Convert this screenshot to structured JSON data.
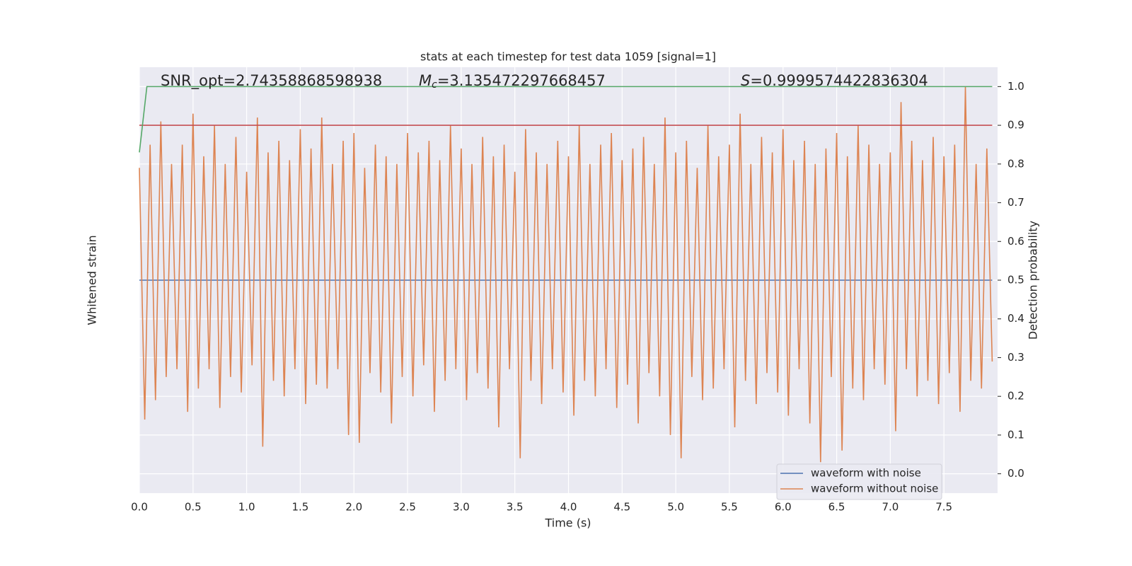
{
  "chart_data": {
    "type": "line",
    "title": "stats at each timestep for test data 1059 [signal=1]",
    "x_label": "Time (s)",
    "y_label": "Whitened strain",
    "y2_label": "Detection probability",
    "annotations": {
      "snr": "SNR_opt=2.74358868598938",
      "mc": {
        "symbol": "M",
        "subscript": "c",
        "text": "=3.135472297668457"
      },
      "s": {
        "symbol": "S",
        "text": "=0.9999574422836304"
      }
    },
    "xlim": [
      0,
      8.0
    ],
    "xticks": [
      {
        "value": 0,
        "label": "0.0"
      },
      0.5,
      {
        "value": 1,
        "label": "1.0"
      },
      1.5,
      {
        "value": 2,
        "label": "2.0"
      },
      2.5,
      {
        "value": 3,
        "label": "3.0"
      },
      3.5,
      {
        "value": 4,
        "label": "4.0"
      },
      4.5,
      {
        "value": 5,
        "label": "5.0"
      },
      5.5,
      {
        "value": 6,
        "label": "6.0"
      },
      6.5,
      {
        "value": 7,
        "label": "7.0"
      },
      7.5
    ],
    "y2lim": [
      -0.05,
      1.05
    ],
    "y2ticks": [
      {
        "value": 0,
        "label": "0.0"
      },
      0.1,
      0.2,
      0.3,
      0.4,
      0.5,
      0.6,
      0.7,
      0.8,
      0.9,
      {
        "value": 1,
        "label": "1.0"
      }
    ],
    "grid": true,
    "legend_position": "lower right",
    "series": [
      {
        "name": "waveform with noise",
        "color": "#4c72b0",
        "axis": "y2",
        "x": [
          0,
          4,
          7.95
        ],
        "values": [
          0.5,
          0.5,
          0.5
        ]
      },
      {
        "name": "waveform without noise",
        "color": "#dd8452",
        "axis": "y2",
        "x": [
          0,
          0.05,
          0.1,
          0.15,
          0.2,
          0.25,
          0.3,
          0.35,
          0.4,
          0.45,
          0.5,
          0.55,
          0.6,
          0.65,
          0.7,
          0.75,
          0.8,
          0.85,
          0.9,
          0.95,
          1,
          1.05,
          1.1,
          1.15,
          1.2,
          1.25,
          1.3,
          1.35,
          1.4,
          1.45,
          1.5,
          1.55,
          1.6,
          1.65,
          1.7,
          1.75,
          1.8,
          1.85,
          1.9,
          1.95,
          2,
          2.05,
          2.1,
          2.15,
          2.2,
          2.25,
          2.3,
          2.35,
          2.4,
          2.45,
          2.5,
          2.55,
          2.6,
          2.65,
          2.7,
          2.75,
          2.8,
          2.85,
          2.9,
          2.95,
          3,
          3.05,
          3.1,
          3.15,
          3.2,
          3.25,
          3.3,
          3.35,
          3.4,
          3.45,
          3.5,
          3.55,
          3.6,
          3.65,
          3.7,
          3.75,
          3.8,
          3.85,
          3.9,
          3.95,
          4,
          4.05,
          4.1,
          4.15,
          4.2,
          4.25,
          4.3,
          4.35,
          4.4,
          4.45,
          4.5,
          4.55,
          4.6,
          4.65,
          4.7,
          4.75,
          4.8,
          4.85,
          4.9,
          4.95,
          5,
          5.05,
          5.1,
          5.15,
          5.2,
          5.25,
          5.3,
          5.35,
          5.4,
          5.45,
          5.5,
          5.55,
          5.6,
          5.65,
          5.7,
          5.75,
          5.8,
          5.85,
          5.9,
          5.95,
          6,
          6.05,
          6.1,
          6.15,
          6.2,
          6.25,
          6.3,
          6.35,
          6.4,
          6.45,
          6.5,
          6.55,
          6.6,
          6.65,
          6.7,
          6.75,
          6.8,
          6.85,
          6.9,
          6.95,
          7,
          7.05,
          7.1,
          7.15,
          7.2,
          7.25,
          7.3,
          7.35,
          7.4,
          7.45,
          7.5,
          7.55,
          7.6,
          7.65,
          7.7,
          7.75,
          7.8,
          7.85,
          7.9,
          7.95
        ],
        "values": [
          0.79,
          0.14,
          0.85,
          0.19,
          0.91,
          0.25,
          0.8,
          0.27,
          0.85,
          0.16,
          0.93,
          0.22,
          0.82,
          0.27,
          0.9,
          0.17,
          0.8,
          0.25,
          0.87,
          0.21,
          0.78,
          0.28,
          0.92,
          0.07,
          0.83,
          0.24,
          0.86,
          0.2,
          0.81,
          0.27,
          0.89,
          0.18,
          0.84,
          0.23,
          0.92,
          0.22,
          0.8,
          0.27,
          0.86,
          0.1,
          0.88,
          0.08,
          0.79,
          0.26,
          0.85,
          0.21,
          0.82,
          0.13,
          0.8,
          0.25,
          0.88,
          0.2,
          0.83,
          0.28,
          0.86,
          0.16,
          0.81,
          0.24,
          0.9,
          0.27,
          0.84,
          0.19,
          0.8,
          0.26,
          0.87,
          0.22,
          0.82,
          0.12,
          0.85,
          0.27,
          0.78,
          0.04,
          0.89,
          0.24,
          0.83,
          0.18,
          0.8,
          0.27,
          0.86,
          0.21,
          0.82,
          0.15,
          0.9,
          0.24,
          0.8,
          0.2,
          0.85,
          0.27,
          0.88,
          0.17,
          0.81,
          0.23,
          0.84,
          0.13,
          0.87,
          0.26,
          0.8,
          0.2,
          0.92,
          0.1,
          0.83,
          0.04,
          0.86,
          0.25,
          0.79,
          0.19,
          0.9,
          0.22,
          0.82,
          0.27,
          0.85,
          0.12,
          0.93,
          0.24,
          0.8,
          0.18,
          0.87,
          0.26,
          0.83,
          0.21,
          0.89,
          0.15,
          0.81,
          0.27,
          0.86,
          0.13,
          0.8,
          0.03,
          0.84,
          0.25,
          0.88,
          0.06,
          0.82,
          0.22,
          0.9,
          0.19,
          0.85,
          0.27,
          0.8,
          0.23,
          0.83,
          0.11,
          0.96,
          0.27,
          0.86,
          0.2,
          0.81,
          0.24,
          0.87,
          0.18,
          0.82,
          0.26,
          0.85,
          0.16,
          1.0,
          0.24,
          0.8,
          0.22,
          0.84,
          0.29
        ]
      }
    ],
    "detection_probability": {
      "color": "#55a868",
      "x": [
        0,
        0.07,
        0.15,
        7.95
      ],
      "values": [
        0.83,
        1.0,
        1.0,
        1.0
      ]
    },
    "threshold": {
      "color": "#c44e52",
      "value": 0.9
    }
  }
}
